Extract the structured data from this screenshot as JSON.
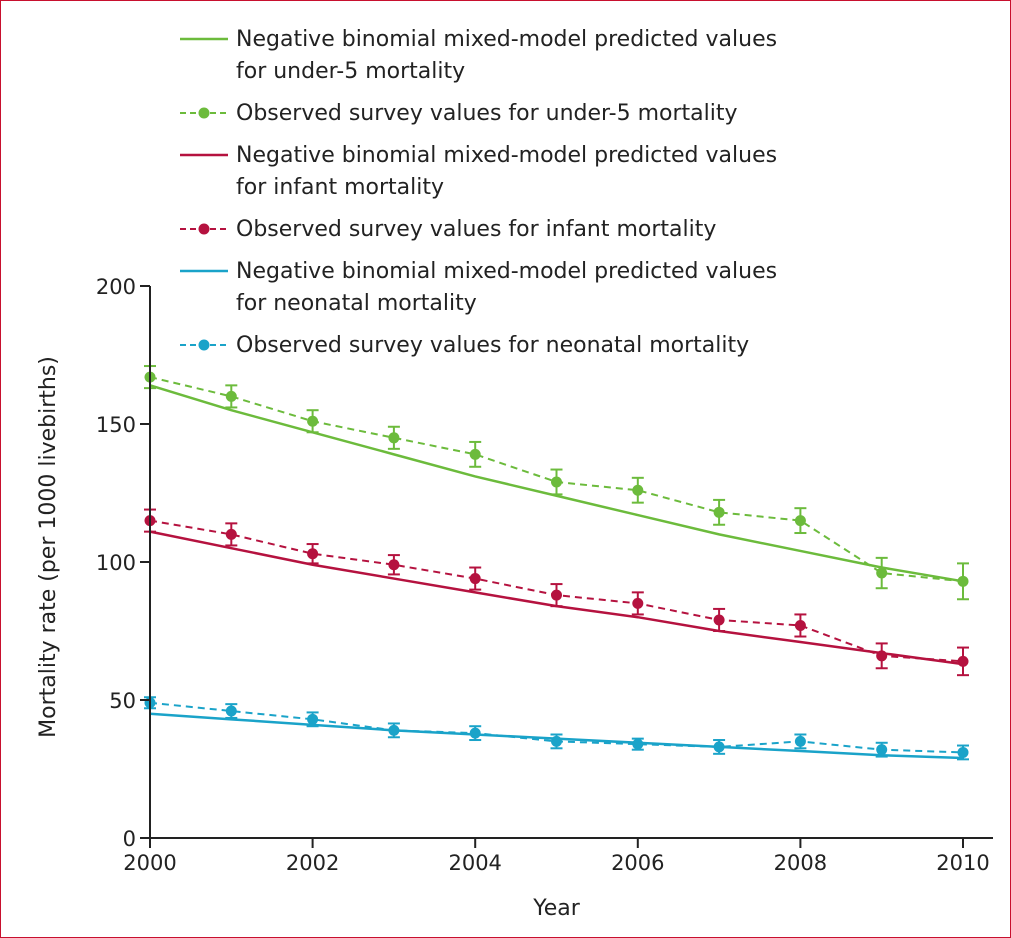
{
  "chart_data": {
    "type": "line",
    "title": "",
    "xlabel": "Year",
    "ylabel": "Mortality rate (per 1000 livebirths)",
    "xlim": [
      2000,
      2010
    ],
    "ylim": [
      0,
      200
    ],
    "x_ticks": [
      2000,
      2002,
      2004,
      2006,
      2008,
      2010
    ],
    "y_ticks": [
      0,
      50,
      100,
      150,
      200
    ],
    "grid": false,
    "legend_position": "top",
    "x": [
      2000,
      2001,
      2002,
      2003,
      2004,
      2005,
      2006,
      2007,
      2008,
      2009,
      2010
    ],
    "series": [
      {
        "name": "Negative binomial mixed-model predicted values for under-5 mortality",
        "legend_lines": [
          "Negative binomial mixed-model predicted values",
          "for under-5 mortality"
        ],
        "style": "solid",
        "color": "#6cbb3c",
        "values": [
          164,
          155,
          147,
          139,
          131,
          124,
          117,
          110,
          104,
          98,
          93
        ]
      },
      {
        "name": "Observed survey values for under-5 mortality",
        "legend_lines": [
          "Observed survey values for under-5 mortality"
        ],
        "style": "dashed-markers",
        "color": "#6cbb3c",
        "values": [
          167,
          160,
          151,
          145,
          139,
          129,
          126,
          118,
          115,
          96,
          93
        ],
        "error": [
          4,
          4,
          4,
          4,
          4.5,
          4.5,
          4.5,
          4.5,
          4.5,
          5.5,
          6.5
        ]
      },
      {
        "name": "Negative binomial mixed-model predicted values for infant mortality",
        "legend_lines": [
          "Negative binomial mixed-model predicted values",
          "for infant mortality"
        ],
        "style": "solid",
        "color": "#b5123f",
        "values": [
          111,
          105,
          99,
          94,
          89,
          84,
          80,
          75,
          71,
          67,
          63
        ]
      },
      {
        "name": "Observed survey values for infant mortality",
        "legend_lines": [
          "Observed survey values for infant mortality"
        ],
        "style": "dashed-markers",
        "color": "#b5123f",
        "values": [
          115,
          110,
          103,
          99,
          94,
          88,
          85,
          79,
          77,
          66,
          64
        ],
        "error": [
          4,
          4,
          3.5,
          3.5,
          4,
          4,
          4,
          4,
          4,
          4.5,
          5
        ]
      },
      {
        "name": "Negative binomial mixed-model predicted values for neonatal mortality",
        "legend_lines": [
          "Negative binomial mixed-model predicted values",
          "for neonatal mortality"
        ],
        "style": "solid",
        "color": "#1aa3c9",
        "values": [
          45,
          43,
          41,
          39,
          37.5,
          36,
          34.5,
          33,
          31.5,
          30,
          29
        ]
      },
      {
        "name": "Observed survey values for neonatal mortality",
        "legend_lines": [
          "Observed survey values for neonatal mortality"
        ],
        "style": "dashed-markers",
        "color": "#1aa3c9",
        "values": [
          49,
          46,
          43,
          39,
          38,
          35,
          34,
          33,
          35,
          32,
          31
        ],
        "error": [
          2,
          2.5,
          2.5,
          2.5,
          2.5,
          2.5,
          2,
          2.5,
          2.5,
          2.5,
          2.5
        ]
      }
    ]
  }
}
